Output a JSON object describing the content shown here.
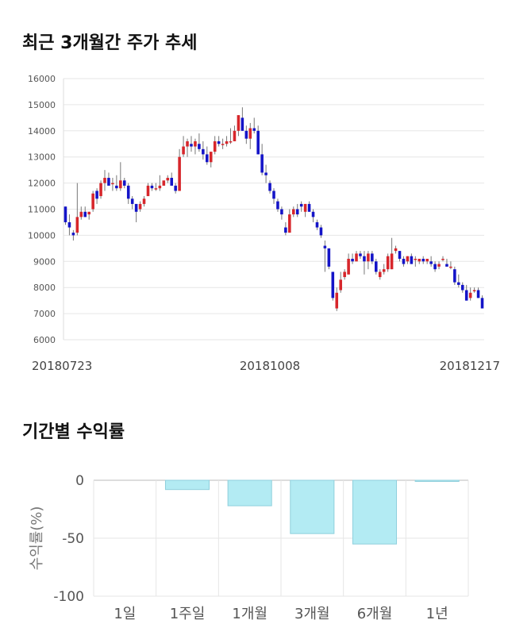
{
  "section1": {
    "title": "최근 3개월간 주가 추세"
  },
  "section2": {
    "title": "기간별 수익률"
  },
  "colors": {
    "up": "#d7262b",
    "down": "#1414c8",
    "bar_fill": "#b3ebf3",
    "bar_stroke": "#8fcfdc",
    "grid": "#e6e6e6"
  },
  "chart_data": [
    {
      "type": "candlestick",
      "title": "",
      "ylim": [
        6000,
        16000
      ],
      "yticks": [
        "16000",
        "15000",
        "14000",
        "13000",
        "12000",
        "11000",
        "10000",
        "9000",
        "8000",
        "7000",
        "6000"
      ],
      "xtick_labels": [
        "20180723",
        "20181008",
        "20181217"
      ],
      "grid": true,
      "candles": [
        [
          11100,
          11100,
          10400,
          10500
        ],
        [
          10500,
          10800,
          10000,
          10300
        ],
        [
          10100,
          10200,
          9800,
          10000
        ],
        [
          10100,
          12000,
          10000,
          10700
        ],
        [
          10700,
          11100,
          10600,
          10900
        ],
        [
          10900,
          11100,
          10700,
          10700
        ],
        [
          10800,
          10900,
          10600,
          10900
        ],
        [
          11000,
          11700,
          10900,
          11600
        ],
        [
          11700,
          11800,
          11200,
          11400
        ],
        [
          11500,
          12100,
          11400,
          12000
        ],
        [
          12000,
          12500,
          11700,
          12200
        ],
        [
          12200,
          12400,
          11900,
          11900
        ],
        [
          12000,
          12200,
          11700,
          12000
        ],
        [
          11900,
          12300,
          11700,
          11800
        ],
        [
          11800,
          12800,
          11700,
          12100
        ],
        [
          12100,
          12200,
          11800,
          11900
        ],
        [
          11900,
          12000,
          11200,
          11400
        ],
        [
          11400,
          11500,
          11000,
          11200
        ],
        [
          11200,
          11200,
          10500,
          10900
        ],
        [
          11000,
          11300,
          10900,
          11200
        ],
        [
          11200,
          11500,
          11100,
          11400
        ],
        [
          11500,
          12000,
          11500,
          11900
        ],
        [
          11900,
          12000,
          11700,
          11800
        ],
        [
          11800,
          12000,
          11700,
          11800
        ],
        [
          11800,
          12300,
          11700,
          11900
        ],
        [
          11900,
          12000,
          11900,
          12100
        ],
        [
          12100,
          12300,
          12000,
          12200
        ],
        [
          12200,
          12400,
          11900,
          11900
        ],
        [
          11900,
          12000,
          11600,
          11700
        ],
        [
          11700,
          13300,
          11700,
          13000
        ],
        [
          13100,
          13800,
          13000,
          13400
        ],
        [
          13400,
          13700,
          13000,
          13600
        ],
        [
          13500,
          13800,
          13200,
          13400
        ],
        [
          13400,
          13700,
          13100,
          13600
        ],
        [
          13500,
          13900,
          13200,
          13300
        ],
        [
          13300,
          13600,
          12900,
          13100
        ],
        [
          13100,
          13400,
          12700,
          12800
        ],
        [
          12800,
          13100,
          12600,
          13200
        ],
        [
          13200,
          13800,
          13100,
          13600
        ],
        [
          13600,
          13800,
          13400,
          13500
        ],
        [
          13500,
          13700,
          13300,
          13500
        ],
        [
          13500,
          13800,
          13400,
          13600
        ],
        [
          13600,
          14100,
          13500,
          13600
        ],
        [
          13600,
          14200,
          13600,
          14000
        ],
        [
          14000,
          14600,
          13800,
          14600
        ],
        [
          14500,
          14900,
          14000,
          14000
        ],
        [
          14000,
          14200,
          13500,
          13700
        ],
        [
          13700,
          14300,
          13300,
          14100
        ],
        [
          14100,
          14500,
          13900,
          14000
        ],
        [
          14000,
          14200,
          13100,
          13100
        ],
        [
          13100,
          13500,
          12300,
          12400
        ],
        [
          12400,
          12700,
          12000,
          12300
        ],
        [
          12000,
          12100,
          11600,
          11700
        ],
        [
          11700,
          11800,
          11200,
          11400
        ],
        [
          11300,
          11400,
          10900,
          11000
        ],
        [
          11000,
          11100,
          10600,
          10800
        ],
        [
          10300,
          10500,
          10000,
          10100
        ],
        [
          10100,
          11000,
          10100,
          10800
        ],
        [
          10800,
          11100,
          10700,
          11000
        ],
        [
          11000,
          11200,
          10700,
          10800
        ],
        [
          11200,
          11300,
          10900,
          11100
        ],
        [
          10900,
          11200,
          10700,
          11200
        ],
        [
          11200,
          11300,
          10900,
          10900
        ],
        [
          10900,
          11000,
          10500,
          10700
        ],
        [
          10500,
          10600,
          10200,
          10300
        ],
        [
          10300,
          10400,
          9900,
          10000
        ],
        [
          9600,
          9800,
          8600,
          9500
        ],
        [
          9500,
          9500,
          8700,
          8800
        ],
        [
          8600,
          8600,
          7500,
          7600
        ],
        [
          7200,
          8000,
          7100,
          7800
        ],
        [
          7900,
          8600,
          7800,
          8300
        ],
        [
          8400,
          8700,
          8300,
          8600
        ],
        [
          8500,
          9300,
          8500,
          9100
        ],
        [
          9100,
          9300,
          8900,
          9000
        ],
        [
          9000,
          9400,
          9000,
          9300
        ],
        [
          9300,
          9400,
          9100,
          9200
        ],
        [
          9200,
          9400,
          8500,
          9000
        ],
        [
          9000,
          9400,
          8700,
          9300
        ],
        [
          9300,
          9400,
          8900,
          9000
        ],
        [
          9000,
          9100,
          8500,
          8600
        ],
        [
          8400,
          8700,
          8300,
          8600
        ],
        [
          8600,
          8900,
          8500,
          8700
        ],
        [
          8700,
          9300,
          8600,
          9200
        ],
        [
          8700,
          9900,
          8700,
          9300
        ],
        [
          9400,
          9600,
          9300,
          9500
        ],
        [
          9400,
          9400,
          9000,
          9100
        ],
        [
          9100,
          9200,
          8800,
          8900
        ],
        [
          9000,
          9200,
          8900,
          9200
        ],
        [
          9200,
          9300,
          8900,
          8900
        ],
        [
          9100,
          9200,
          8800,
          9100
        ],
        [
          9000,
          9100,
          8900,
          9100
        ],
        [
          9100,
          9200,
          8900,
          9000
        ],
        [
          9000,
          9100,
          8900,
          9100
        ],
        [
          9000,
          9200,
          8800,
          8900
        ],
        [
          8900,
          9000,
          8600,
          8700
        ],
        [
          8800,
          9000,
          8700,
          8900
        ],
        [
          9100,
          9200,
          9000,
          9100
        ],
        [
          8900,
          9100,
          8800,
          8800
        ],
        [
          8800,
          9000,
          8700,
          8800
        ],
        [
          8700,
          8800,
          8100,
          8200
        ],
        [
          8200,
          8500,
          8000,
          8100
        ],
        [
          8100,
          8200,
          7800,
          7900
        ],
        [
          7900,
          8100,
          7500,
          7500
        ],
        [
          7600,
          8000,
          7500,
          7800
        ],
        [
          7900,
          8000,
          7800,
          7900
        ],
        [
          7900,
          8000,
          7600,
          7600
        ],
        [
          7600,
          7700,
          7200,
          7200
        ]
      ]
    },
    {
      "type": "bar",
      "title": "",
      "ylabel": "수익률(%)",
      "ylim": [
        -100,
        0
      ],
      "yticks": [
        "0",
        "-50",
        "-100"
      ],
      "categories": [
        "1일",
        "1주일",
        "1개월",
        "3개월",
        "6개월",
        "1년"
      ],
      "values": [
        0,
        -8,
        -22,
        -46,
        -55,
        -1
      ],
      "grid": true
    }
  ]
}
